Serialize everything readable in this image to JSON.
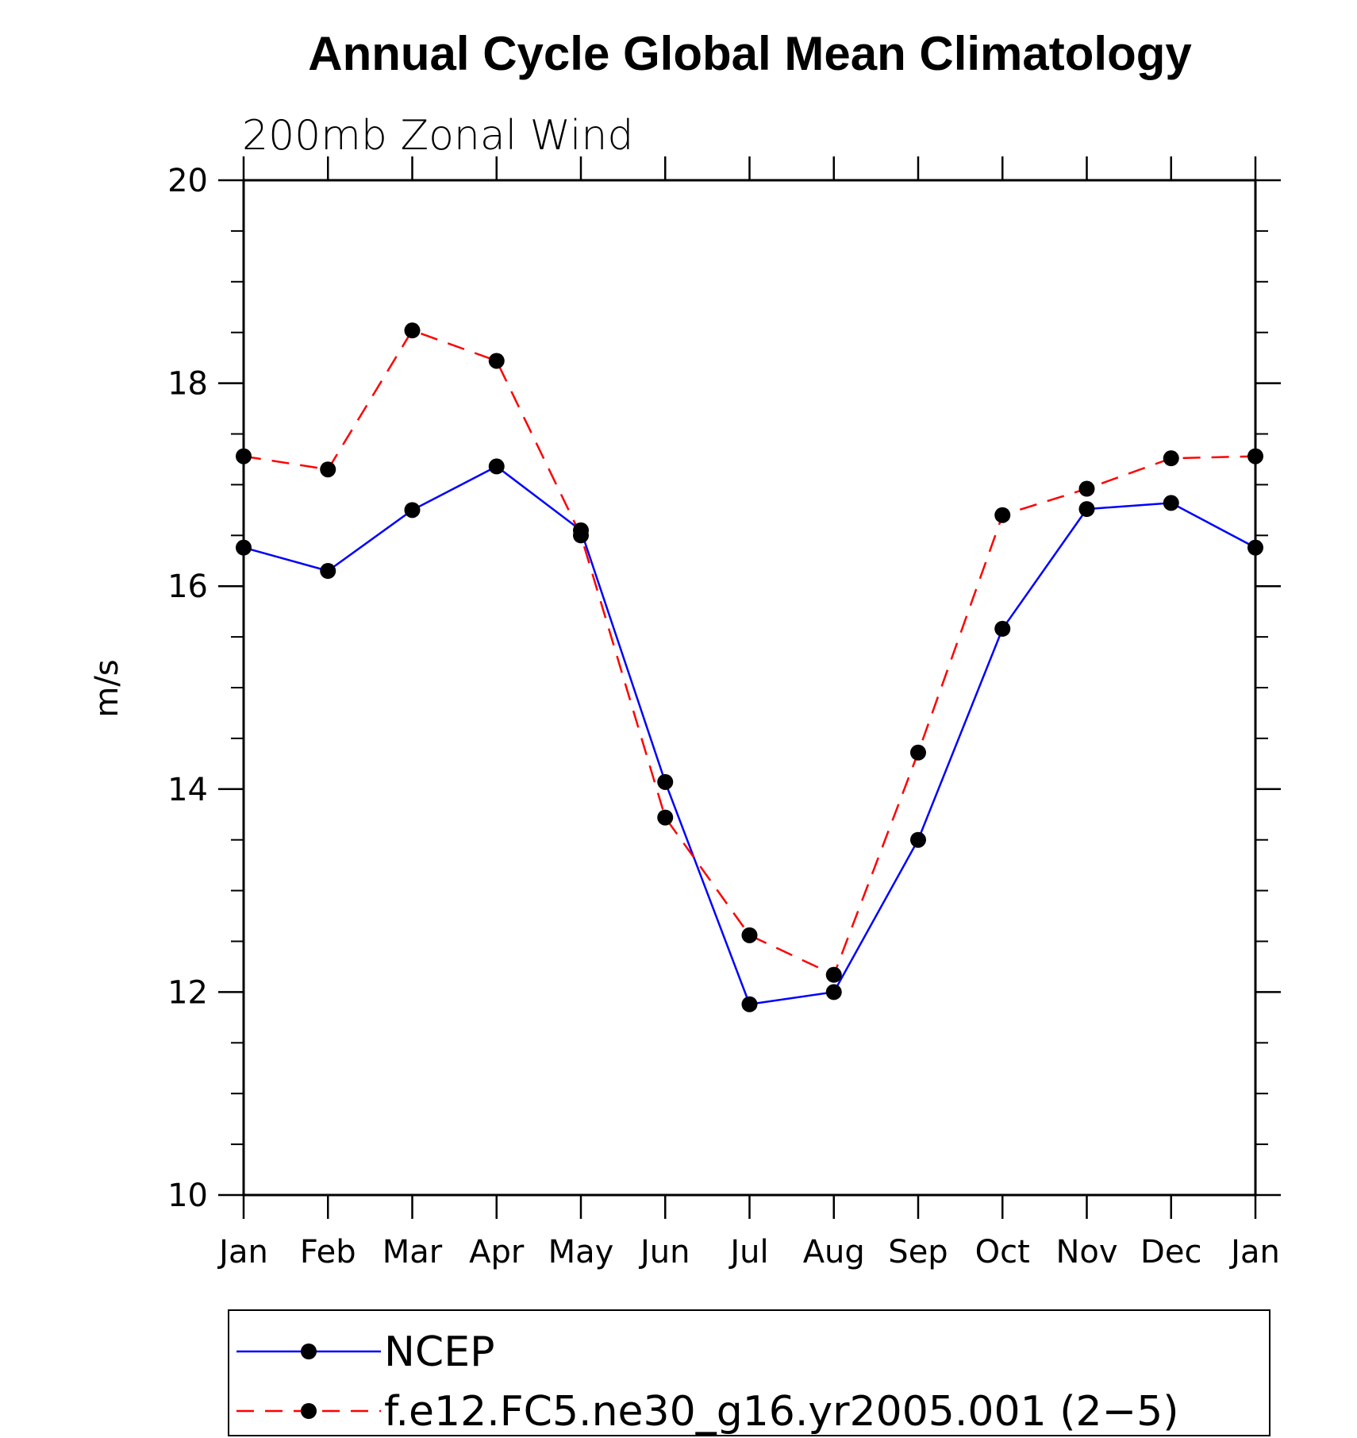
{
  "chart_data": {
    "type": "line",
    "title": "Annual Cycle Global Mean Climatology",
    "subtitle": "200mb Zonal Wind",
    "xlabel": "",
    "ylabel": "m/s",
    "categories": [
      "Jan",
      "Feb",
      "Mar",
      "Apr",
      "May",
      "Jun",
      "Jul",
      "Aug",
      "Sep",
      "Oct",
      "Nov",
      "Dec",
      "Jan"
    ],
    "ylim": [
      10,
      20
    ],
    "yticks": [
      "10",
      "12",
      "14",
      "16",
      "18",
      "20"
    ],
    "grid": false,
    "legend_position": "bottom",
    "series": [
      {
        "name": "NCEP",
        "color": "#0000ff",
        "dash": "solid",
        "marker": "filled-circle",
        "values": [
          16.38,
          16.15,
          16.75,
          17.18,
          16.55,
          14.07,
          11.88,
          12.0,
          13.5,
          15.58,
          16.76,
          16.82,
          16.38
        ]
      },
      {
        "name": "f.e12.FC5.ne30_g16.yr2005.001 (2−5)",
        "color": "#ff0000",
        "dash": "dashed",
        "marker": "filled-circle",
        "values": [
          17.28,
          17.15,
          18.52,
          18.22,
          16.5,
          13.72,
          12.56,
          12.17,
          14.36,
          16.7,
          16.96,
          17.26,
          17.28
        ]
      }
    ]
  }
}
